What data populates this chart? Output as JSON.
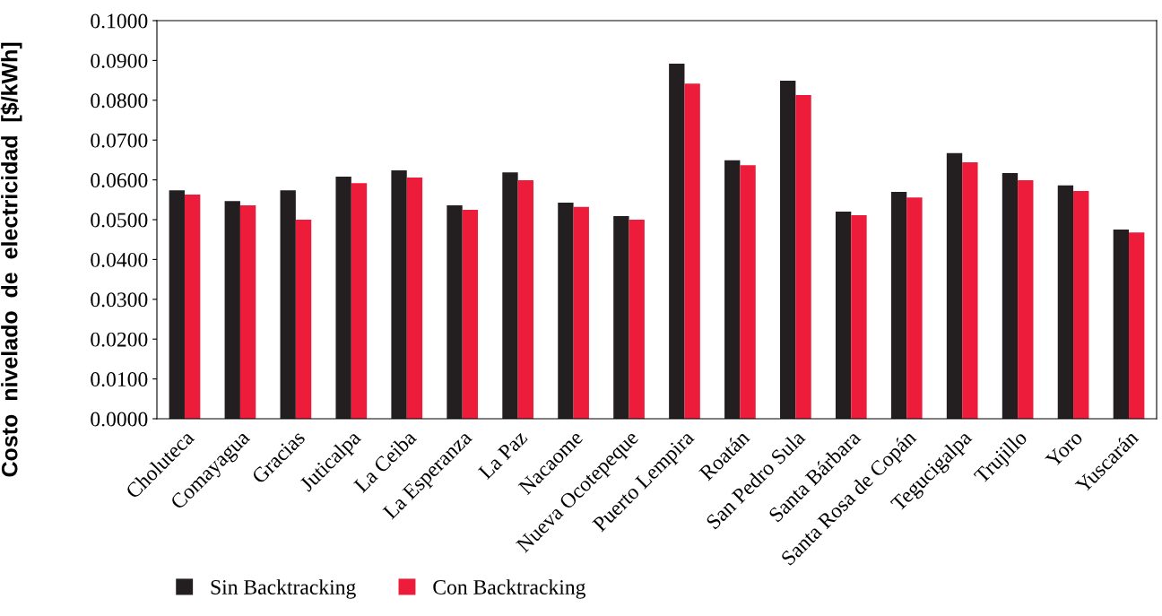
{
  "chart_data": {
    "type": "bar",
    "ylabel": "Costo  nivelado  de  electricidad  [$/kWh]",
    "categories": [
      "Choluteca",
      "Comayagua",
      "Gracias",
      "Juticalpa",
      "La Ceiba",
      "La Esperanza",
      "La Paz",
      "Nacaome",
      "Nueva Ocotepeque",
      "Puerto Lempira",
      "Roatán",
      "San Pedro Sula",
      "Santa Bárbara",
      "Santa Rosa de Copán",
      "Tegucigalpa",
      "Trujillo",
      "Yoro",
      "Yuscarán"
    ],
    "series": [
      {
        "name": "Sin Backtracking",
        "color": "#231f20",
        "values": [
          0.0574,
          0.0547,
          0.0574,
          0.0608,
          0.0624,
          0.0536,
          0.0619,
          0.0543,
          0.0509,
          0.0892,
          0.0649,
          0.0849,
          0.052,
          0.057,
          0.0667,
          0.0617,
          0.0586,
          0.0475
        ]
      },
      {
        "name": "Con Backtracking",
        "color": "#ed1c3a",
        "values": [
          0.0563,
          0.0536,
          0.05,
          0.0592,
          0.0606,
          0.0525,
          0.0599,
          0.0532,
          0.05,
          0.0842,
          0.0637,
          0.0813,
          0.0511,
          0.0556,
          0.0644,
          0.0599,
          0.0572,
          0.0468
        ]
      }
    ],
    "ylim": [
      0,
      0.1
    ],
    "yticks": [
      {
        "value": 0,
        "label": "0.0000"
      },
      {
        "value": 0.01,
        "label": "0.0100"
      },
      {
        "value": 0.02,
        "label": "0.0200"
      },
      {
        "value": 0.03,
        "label": "0.0300"
      },
      {
        "value": 0.04,
        "label": "0.0400"
      },
      {
        "value": 0.05,
        "label": "0.0500"
      },
      {
        "value": 0.06,
        "label": "0.0600"
      },
      {
        "value": 0.07,
        "label": "0.0700"
      },
      {
        "value": 0.08,
        "label": "0.0800"
      },
      {
        "value": 0.09,
        "label": "0.0900"
      },
      {
        "value": 0.1,
        "label": "0.1000"
      }
    ],
    "grid": false,
    "legend": "bottom left"
  }
}
